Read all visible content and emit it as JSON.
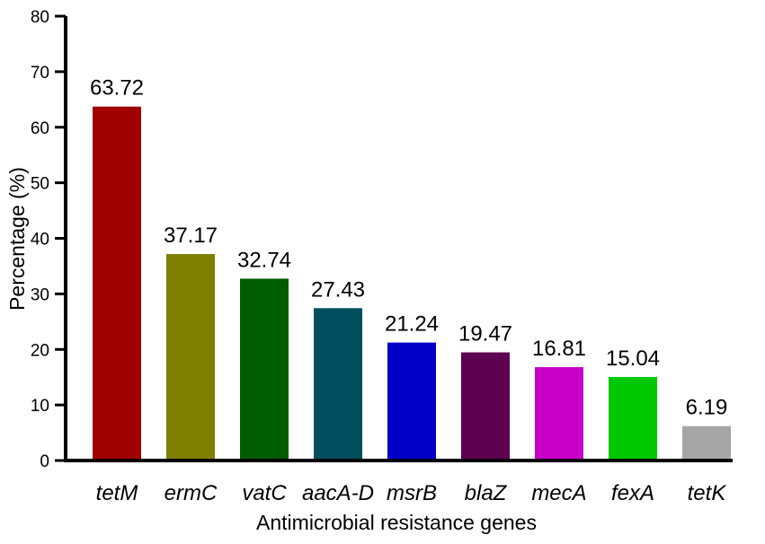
{
  "chart_data": {
    "type": "bar",
    "title": "",
    "xlabel": "Antimicrobial resistance genes",
    "ylabel": "Percentage (%)",
    "ylim": [
      0,
      80
    ],
    "yticks": [
      0,
      10,
      20,
      30,
      40,
      50,
      60,
      70,
      80
    ],
    "grid": false,
    "categories": [
      "tetM",
      "ermC",
      "vatC",
      "aacA-D",
      "msrB",
      "blaZ",
      "mecA",
      "fexA",
      "tetK"
    ],
    "values": [
      63.72,
      37.17,
      32.74,
      27.43,
      21.24,
      19.47,
      16.81,
      15.04,
      6.19
    ],
    "value_labels": [
      "63.72",
      "37.17",
      "32.74",
      "27.43",
      "21.24",
      "19.47",
      "16.81",
      "15.04",
      "6.19"
    ],
    "colors": [
      "#a00000",
      "#7f7f00",
      "#005c00",
      "#004e5e",
      "#0000c8",
      "#5e0050",
      "#c800c8",
      "#00c800",
      "#a6a6a6"
    ]
  }
}
